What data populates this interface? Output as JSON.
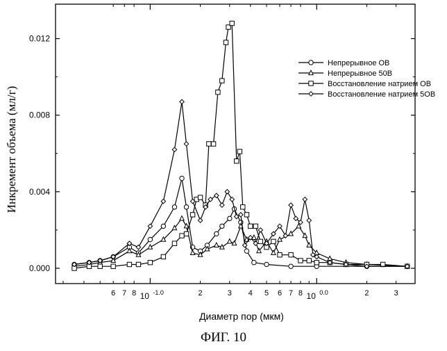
{
  "figure_caption": "ФИГ. 10",
  "chart_data": {
    "type": "line",
    "xlabel": "Диаметр пор (мкм)",
    "ylabel": "Инкремент объема (мл/г)",
    "x_scale": "log",
    "xlim": [
      0.027,
      3.9
    ],
    "ylim": [
      -0.0008,
      0.0138
    ],
    "y_ticks": [
      "0.000",
      "0.004",
      "0.008",
      "0.012"
    ],
    "y_tick_values": [
      0.0,
      0.004,
      0.008,
      0.012
    ],
    "x_minor_ticks": [
      {
        "value": 0.06,
        "label": "6"
      },
      {
        "value": 0.07,
        "label": "7"
      },
      {
        "value": 0.08,
        "label": "8"
      },
      {
        "value": 0.2,
        "label": "2"
      },
      {
        "value": 0.3,
        "label": "3"
      },
      {
        "value": 0.4,
        "label": "4"
      },
      {
        "value": 0.5,
        "label": "5"
      },
      {
        "value": 0.6,
        "label": "6"
      },
      {
        "value": 0.7,
        "label": "7"
      },
      {
        "value": 0.8,
        "label": "8"
      },
      {
        "value": 2,
        "label": "2"
      },
      {
        "value": 3,
        "label": "3"
      }
    ],
    "x_major_ticks": [
      {
        "value": 0.1,
        "base": "10",
        "exp": "-1.0"
      },
      {
        "value": 1.0,
        "base": "10",
        "exp": "0.0"
      }
    ],
    "legend_position": "top-right",
    "grid": false,
    "series": [
      {
        "name": "Непрерывное ОВ",
        "marker": "circle",
        "points": [
          [
            0.035,
            0.0002
          ],
          [
            0.043,
            0.0003
          ],
          [
            0.05,
            0.0004
          ],
          [
            0.06,
            0.0006
          ],
          [
            0.075,
            0.0011
          ],
          [
            0.085,
            0.0008
          ],
          [
            0.1,
            0.0015
          ],
          [
            0.12,
            0.0022
          ],
          [
            0.14,
            0.0032
          ],
          [
            0.155,
            0.0047
          ],
          [
            0.165,
            0.0032
          ],
          [
            0.18,
            0.0011
          ],
          [
            0.2,
            0.0009
          ],
          [
            0.22,
            0.0012
          ],
          [
            0.25,
            0.0018
          ],
          [
            0.27,
            0.0022
          ],
          [
            0.3,
            0.0026
          ],
          [
            0.32,
            0.0031
          ],
          [
            0.35,
            0.0024
          ],
          [
            0.38,
            0.0009
          ],
          [
            0.42,
            0.0003
          ],
          [
            0.5,
            0.0002
          ],
          [
            0.7,
            0.0001
          ],
          [
            1.0,
            0.0001
          ],
          [
            2.0,
            0.0001
          ],
          [
            3.5,
            0.0001
          ]
        ]
      },
      {
        "name": "Непрерывное 50В",
        "marker": "triangle",
        "points": [
          [
            0.035,
            0.0001
          ],
          [
            0.043,
            0.0002
          ],
          [
            0.05,
            0.0003
          ],
          [
            0.06,
            0.0004
          ],
          [
            0.075,
            0.0009
          ],
          [
            0.085,
            0.0007
          ],
          [
            0.1,
            0.0011
          ],
          [
            0.12,
            0.0015
          ],
          [
            0.14,
            0.0021
          ],
          [
            0.155,
            0.0026
          ],
          [
            0.165,
            0.0022
          ],
          [
            0.18,
            0.0008
          ],
          [
            0.2,
            0.0007
          ],
          [
            0.22,
            0.001
          ],
          [
            0.25,
            0.0012
          ],
          [
            0.27,
            0.0011
          ],
          [
            0.3,
            0.0014
          ],
          [
            0.32,
            0.0013
          ],
          [
            0.35,
            0.0022
          ],
          [
            0.38,
            0.0015
          ],
          [
            0.42,
            0.0016
          ],
          [
            0.45,
            0.0009
          ],
          [
            0.5,
            0.0014
          ],
          [
            0.55,
            0.0008
          ],
          [
            0.6,
            0.0015
          ],
          [
            0.7,
            0.0018
          ],
          [
            0.78,
            0.0022
          ],
          [
            0.85,
            0.0017
          ],
          [
            0.9,
            0.0012
          ],
          [
            1.0,
            0.0008
          ],
          [
            1.2,
            0.0005
          ],
          [
            1.5,
            0.0003
          ],
          [
            2.0,
            0.0002
          ],
          [
            3.5,
            0.0001
          ]
        ]
      },
      {
        "name": "Восстановление натрием ОВ",
        "marker": "square",
        "points": [
          [
            0.035,
            0.0
          ],
          [
            0.043,
            0.0001
          ],
          [
            0.05,
            0.0001
          ],
          [
            0.06,
            0.0001
          ],
          [
            0.075,
            0.0002
          ],
          [
            0.085,
            0.0002
          ],
          [
            0.1,
            0.0003
          ],
          [
            0.12,
            0.0006
          ],
          [
            0.14,
            0.0013
          ],
          [
            0.155,
            0.0017
          ],
          [
            0.165,
            0.0018
          ],
          [
            0.18,
            0.0028
          ],
          [
            0.19,
            0.0036
          ],
          [
            0.2,
            0.0037
          ],
          [
            0.215,
            0.0033
          ],
          [
            0.225,
            0.0065
          ],
          [
            0.24,
            0.0065
          ],
          [
            0.255,
            0.0092
          ],
          [
            0.27,
            0.0098
          ],
          [
            0.285,
            0.0118
          ],
          [
            0.295,
            0.0126
          ],
          [
            0.31,
            0.0128
          ],
          [
            0.33,
            0.0056
          ],
          [
            0.345,
            0.0061
          ],
          [
            0.36,
            0.0032
          ],
          [
            0.38,
            0.0028
          ],
          [
            0.4,
            0.0022
          ],
          [
            0.43,
            0.0022
          ],
          [
            0.46,
            0.0014
          ],
          [
            0.5,
            0.0011
          ],
          [
            0.55,
            0.0014
          ],
          [
            0.6,
            0.0007
          ],
          [
            0.7,
            0.0007
          ],
          [
            0.8,
            0.0004
          ],
          [
            0.9,
            0.0004
          ],
          [
            1.0,
            0.0003
          ],
          [
            1.2,
            0.0003
          ],
          [
            1.5,
            0.0002
          ],
          [
            2.0,
            0.0002
          ],
          [
            2.5,
            0.0002
          ],
          [
            3.5,
            0.0001
          ]
        ]
      },
      {
        "name": "Восстановление натрием 5ОВ",
        "marker": "diamond",
        "points": [
          [
            0.035,
            0.0002
          ],
          [
            0.043,
            0.0003
          ],
          [
            0.05,
            0.0004
          ],
          [
            0.06,
            0.0006
          ],
          [
            0.075,
            0.0013
          ],
          [
            0.085,
            0.0011
          ],
          [
            0.1,
            0.0022
          ],
          [
            0.12,
            0.0035
          ],
          [
            0.14,
            0.0062
          ],
          [
            0.155,
            0.0087
          ],
          [
            0.165,
            0.0065
          ],
          [
            0.18,
            0.0035
          ],
          [
            0.2,
            0.0025
          ],
          [
            0.215,
            0.0032
          ],
          [
            0.23,
            0.0036
          ],
          [
            0.25,
            0.0038
          ],
          [
            0.27,
            0.0033
          ],
          [
            0.29,
            0.004
          ],
          [
            0.31,
            0.0036
          ],
          [
            0.33,
            0.0027
          ],
          [
            0.35,
            0.0028
          ],
          [
            0.37,
            0.0012
          ],
          [
            0.4,
            0.0016
          ],
          [
            0.43,
            0.0013
          ],
          [
            0.46,
            0.002
          ],
          [
            0.5,
            0.0013
          ],
          [
            0.55,
            0.0018
          ],
          [
            0.6,
            0.0022
          ],
          [
            0.65,
            0.0017
          ],
          [
            0.7,
            0.0033
          ],
          [
            0.75,
            0.0026
          ],
          [
            0.8,
            0.0024
          ],
          [
            0.85,
            0.0036
          ],
          [
            0.9,
            0.0025
          ],
          [
            0.95,
            0.0007
          ],
          [
            1.0,
            0.0006
          ],
          [
            1.2,
            0.0003
          ],
          [
            1.5,
            0.0002
          ],
          [
            2.0,
            0.0001
          ],
          [
            3.5,
            0.0001
          ]
        ]
      }
    ]
  }
}
